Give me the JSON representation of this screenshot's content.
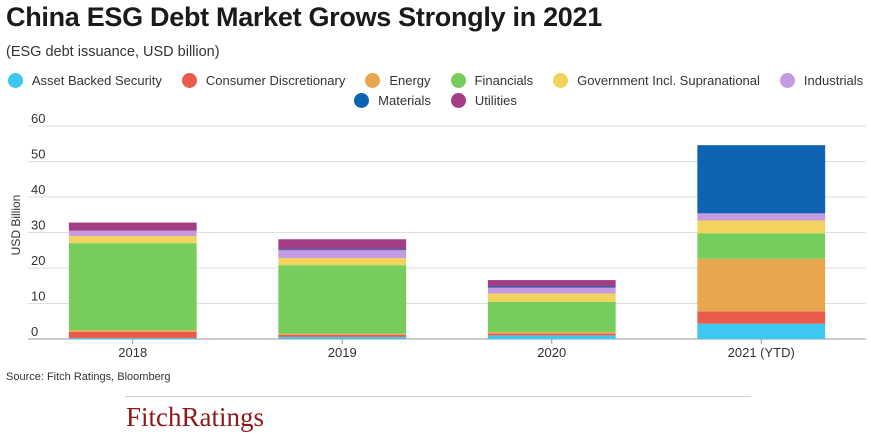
{
  "chart_data": {
    "type": "bar",
    "stacked": true,
    "title": "China ESG Debt Market Grows Strongly in 2021",
    "subtitle": "(ESG debt issuance, USD billion)",
    "ylabel": "USD Billion",
    "xlabel": "",
    "ylim": [
      0,
      60
    ],
    "yticks": [
      0,
      10,
      20,
      30,
      40,
      50,
      60
    ],
    "categories": [
      "2018",
      "2019",
      "2020",
      "2021 (YTD)"
    ],
    "series": [
      {
        "name": "Asset Backed Security",
        "color": "#3cc8f0",
        "values": [
          0.3,
          0.6,
          1.0,
          4.3
        ]
      },
      {
        "name": "Consumer Discretionary",
        "color": "#ea5b4b",
        "values": [
          1.7,
          0.6,
          0.5,
          3.5
        ]
      },
      {
        "name": "Energy",
        "color": "#e8a64e",
        "values": [
          0.5,
          0.3,
          0.5,
          14.8
        ]
      },
      {
        "name": "Financials",
        "color": "#76cd5c",
        "values": [
          24.5,
          19.3,
          8.5,
          7.2
        ]
      },
      {
        "name": "Government Incl. Supranational",
        "color": "#f1d35e",
        "values": [
          2.0,
          2.0,
          2.3,
          3.6
        ]
      },
      {
        "name": "Industrials",
        "color": "#c69ae0",
        "values": [
          1.5,
          2.2,
          1.7,
          2.0
        ]
      },
      {
        "name": "Materials",
        "color": "#0d63b2",
        "values": [
          0.0,
          0.3,
          0.3,
          19.2
        ]
      },
      {
        "name": "Utilities",
        "color": "#a33e86",
        "values": [
          2.3,
          2.8,
          1.8,
          0.0
        ]
      }
    ],
    "legend_position": "top-center",
    "grid": true
  },
  "source": "Source: Fitch Ratings, Bloomberg",
  "logo_text": "FitchRatings"
}
